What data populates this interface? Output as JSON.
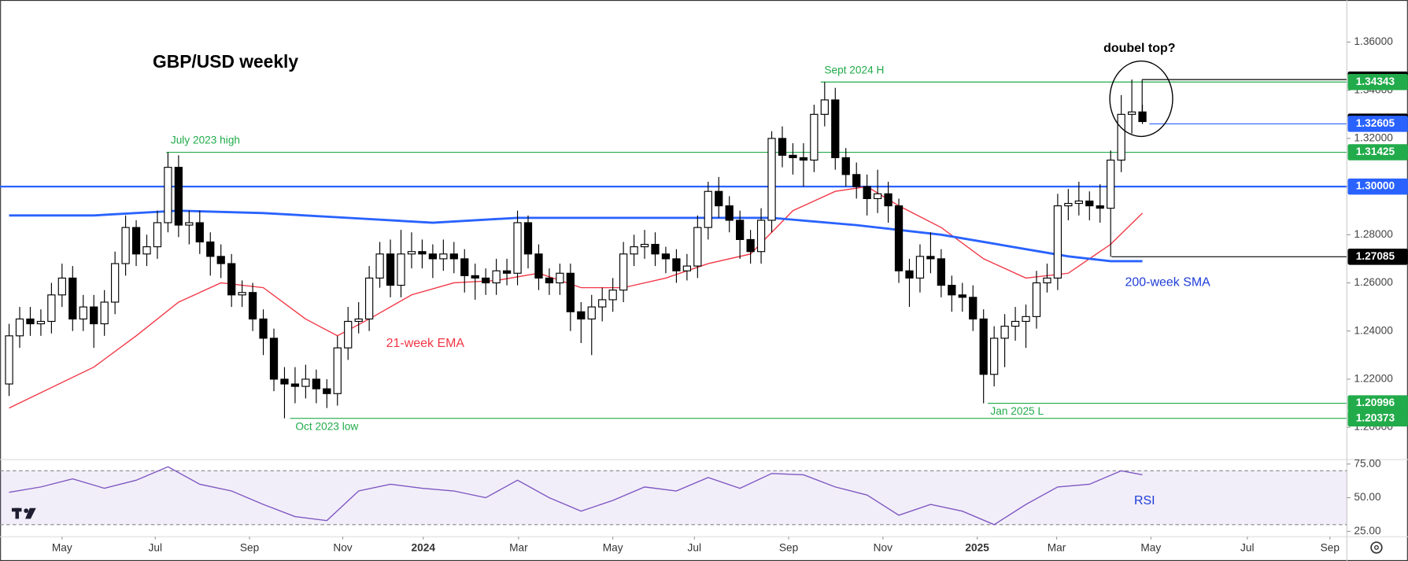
{
  "chart_data": [
    {
      "type": "candlestick",
      "title": "GBP/USD weekly",
      "xlim": [
        -0.85,
        126.3
      ],
      "xticks": [
        {
          "value": 5,
          "label": "May"
        },
        {
          "value": 13.8,
          "label": "Jul"
        },
        {
          "value": 22.7,
          "label": "Sep"
        },
        {
          "value": 31.5,
          "label": "Nov"
        },
        {
          "value": 39.1,
          "label": "2024"
        },
        {
          "value": 48.1,
          "label": "Mar"
        },
        {
          "value": 57,
          "label": "May"
        },
        {
          "value": 64.7,
          "label": "Jul"
        },
        {
          "value": 73.6,
          "label": "Sep"
        },
        {
          "value": 82.5,
          "label": "Nov"
        },
        {
          "value": 91.4,
          "label": "2025"
        },
        {
          "value": 98.9,
          "label": "Mar"
        },
        {
          "value": 107.8,
          "label": "May"
        },
        {
          "value": 116.9,
          "label": "Jul"
        },
        {
          "value": 124.7,
          "label": "Sep"
        }
      ],
      "ylim": [
        1.1866,
        1.3775
      ],
      "yticks": [
        {
          "value": 1.36,
          "label": "1.36000"
        },
        {
          "value": 1.34,
          "label": "1.34000"
        },
        {
          "value": 1.32,
          "label": "1.32000"
        },
        {
          "value": 1.3,
          "label": "1.30000"
        },
        {
          "value": 1.28,
          "label": "1.28000"
        },
        {
          "value": 1.26,
          "label": "1.26000"
        },
        {
          "value": 1.24,
          "label": "1.24000"
        },
        {
          "value": 1.22,
          "label": "1.22000"
        },
        {
          "value": 1.2,
          "label": "1.20000"
        }
      ],
      "up_color": "#ffffff",
      "down_color": "#000000",
      "open": [
        1.218,
        1.238,
        1.245,
        1.243,
        1.244,
        1.255,
        1.262,
        1.245,
        1.25,
        1.243,
        1.252,
        1.268,
        1.283,
        1.272,
        1.275,
        1.285,
        1.308,
        1.284,
        1.285,
        1.277,
        1.271,
        1.268,
        1.255,
        1.256,
        1.245,
        1.237,
        1.22,
        1.218,
        1.217,
        1.22,
        1.216,
        1.214,
        1.233,
        1.244,
        1.245,
        1.262,
        1.272,
        1.259,
        1.272,
        1.273,
        1.272,
        1.27,
        1.272,
        1.27,
        1.263,
        1.262,
        1.26,
        1.265,
        1.264,
        1.285,
        1.272,
        1.262,
        1.26,
        1.264,
        1.248,
        1.245,
        1.25,
        1.253,
        1.257,
        1.272,
        1.275,
        1.276,
        1.272,
        1.27,
        1.265,
        1.267,
        1.283,
        1.298,
        1.292,
        1.286,
        1.278,
        1.273,
        1.286,
        1.32,
        1.313,
        1.312,
        1.311,
        1.33,
        1.336,
        1.312,
        1.305,
        1.3,
        1.295,
        1.297,
        1.292,
        1.265,
        1.262,
        1.271,
        1.27,
        1.259,
        1.255,
        1.254,
        1.245,
        1.222,
        1.237,
        1.242,
        1.244,
        1.246,
        1.26,
        1.262,
        1.292,
        1.293,
        1.294,
        1.292,
        1.291,
        1.311,
        1.33,
        1.331
      ],
      "high": [
        1.243,
        1.25,
        1.25,
        1.249,
        1.26,
        1.268,
        1.267,
        1.255,
        1.255,
        1.257,
        1.273,
        1.288,
        1.286,
        1.28,
        1.29,
        1.31425,
        1.313,
        1.29,
        1.29,
        1.281,
        1.276,
        1.272,
        1.261,
        1.26,
        1.249,
        1.241,
        1.225,
        1.225,
        1.226,
        1.224,
        1.22,
        1.238,
        1.25,
        1.252,
        1.267,
        1.277,
        1.278,
        1.282,
        1.281,
        1.278,
        1.276,
        1.278,
        1.277,
        1.274,
        1.268,
        1.266,
        1.27,
        1.27,
        1.29,
        1.288,
        1.276,
        1.266,
        1.268,
        1.268,
        1.252,
        1.255,
        1.258,
        1.262,
        1.277,
        1.28,
        1.282,
        1.281,
        1.275,
        1.274,
        1.272,
        1.288,
        1.302,
        1.304,
        1.296,
        1.29,
        1.282,
        1.291,
        1.323,
        1.325,
        1.318,
        1.318,
        1.334,
        1.34343,
        1.341,
        1.316,
        1.31,
        1.305,
        1.307,
        1.302,
        1.295,
        1.27,
        1.276,
        1.281,
        1.274,
        1.263,
        1.26,
        1.259,
        1.249,
        1.242,
        1.247,
        1.25,
        1.251,
        1.265,
        1.268,
        1.297,
        1.299,
        1.302,
        1.298,
        1.301,
        1.315,
        1.338,
        1.34445,
        1.334
      ],
      "low": [
        1.213,
        1.233,
        1.238,
        1.238,
        1.239,
        1.25,
        1.24,
        1.24,
        1.233,
        1.238,
        1.247,
        1.263,
        1.267,
        1.267,
        1.27,
        1.281,
        1.279,
        1.276,
        1.272,
        1.263,
        1.262,
        1.25,
        1.25,
        1.24,
        1.23,
        1.215,
        1.20373,
        1.21,
        1.212,
        1.21,
        1.208,
        1.209,
        1.228,
        1.239,
        1.24,
        1.258,
        1.254,
        1.254,
        1.266,
        1.266,
        1.262,
        1.265,
        1.264,
        1.256,
        1.253,
        1.255,
        1.255,
        1.259,
        1.259,
        1.266,
        1.257,
        1.255,
        1.255,
        1.24,
        1.235,
        1.23,
        1.244,
        1.248,
        1.252,
        1.267,
        1.27,
        1.267,
        1.264,
        1.26,
        1.261,
        1.262,
        1.278,
        1.287,
        1.281,
        1.27,
        1.268,
        1.268,
        1.281,
        1.308,
        1.305,
        1.3,
        1.306,
        1.325,
        1.307,
        1.3,
        1.295,
        1.288,
        1.289,
        1.285,
        1.26,
        1.25,
        1.256,
        1.264,
        1.254,
        1.248,
        1.248,
        1.24,
        1.20996,
        1.217,
        1.225,
        1.236,
        1.233,
        1.241,
        1.256,
        1.257,
        1.286,
        1.288,
        1.286,
        1.285,
        1.27085,
        1.306,
        1.322,
        1.326
      ],
      "close": [
        1.238,
        1.245,
        1.243,
        1.244,
        1.255,
        1.262,
        1.245,
        1.25,
        1.243,
        1.252,
        1.268,
        1.283,
        1.272,
        1.275,
        1.285,
        1.308,
        1.284,
        1.285,
        1.277,
        1.271,
        1.268,
        1.255,
        1.256,
        1.245,
        1.237,
        1.22,
        1.218,
        1.217,
        1.22,
        1.216,
        1.214,
        1.233,
        1.244,
        1.245,
        1.262,
        1.272,
        1.259,
        1.272,
        1.273,
        1.272,
        1.27,
        1.272,
        1.27,
        1.263,
        1.262,
        1.26,
        1.265,
        1.264,
        1.285,
        1.272,
        1.262,
        1.26,
        1.264,
        1.248,
        1.245,
        1.25,
        1.253,
        1.257,
        1.272,
        1.275,
        1.276,
        1.272,
        1.27,
        1.265,
        1.267,
        1.283,
        1.298,
        1.292,
        1.286,
        1.278,
        1.273,
        1.286,
        1.32,
        1.313,
        1.312,
        1.311,
        1.33,
        1.336,
        1.312,
        1.305,
        1.3,
        1.295,
        1.297,
        1.292,
        1.265,
        1.262,
        1.271,
        1.27,
        1.259,
        1.255,
        1.254,
        1.245,
        1.222,
        1.237,
        1.242,
        1.244,
        1.246,
        1.26,
        1.262,
        1.292,
        1.293,
        1.294,
        1.292,
        1.291,
        1.311,
        1.33,
        1.331,
        1.327
      ],
      "series": [
        {
          "color": "#f23645",
          "x": [
            0,
            8,
            12,
            16,
            20,
            24,
            28,
            31,
            34,
            38,
            42,
            46,
            50,
            54,
            58,
            62,
            66,
            70,
            74,
            78,
            81,
            84,
            88,
            92,
            96,
            100,
            104,
            107
          ],
          "values": [
            1.208,
            1.225,
            1.238,
            1.252,
            1.26,
            1.258,
            1.245,
            1.238,
            1.245,
            1.255,
            1.26,
            1.261,
            1.264,
            1.258,
            1.258,
            1.262,
            1.268,
            1.272,
            1.29,
            1.298,
            1.3,
            1.292,
            1.283,
            1.27,
            1.262,
            1.264,
            1.276,
            1.289
          ]
        },
        {
          "color": "#2962ff",
          "x": [
            0,
            8,
            16,
            24,
            32,
            40,
            48,
            56,
            64,
            72,
            80,
            88,
            92,
            96,
            100,
            104,
            107
          ],
          "values": [
            1.288,
            1.288,
            1.29,
            1.289,
            1.287,
            1.285,
            1.287,
            1.287,
            1.287,
            1.287,
            1.284,
            1.28,
            1.277,
            1.274,
            1.271,
            1.269,
            1.269
          ]
        }
      ],
      "levels": [
        {
          "price": 1.34445,
          "color": "#000000"
        },
        {
          "price": 1.34343,
          "color": "#22ab4a"
        },
        {
          "price": 1.32696,
          "color": "#000000"
        },
        {
          "price": 1.32605,
          "color": "#2962ff"
        },
        {
          "price": 1.31425,
          "color": "#22ab4a"
        },
        {
          "price": {
            "value": 1.3,
            "label": "1.30000"
          },
          "color": "#2962ff"
        },
        {
          "price": 1.27085,
          "color": "#000000"
        },
        {
          "price": 1.20996,
          "color": "#22ab4a"
        },
        {
          "price": 1.20373,
          "color": "#22ab4a"
        }
      ],
      "annotations": [
        {
          "text": "July 2023 high",
          "color": "#22ab4a"
        },
        {
          "text": "Sept 2024 H",
          "color": "#22ab4a"
        },
        {
          "text": "Oct 2023 low",
          "color": "#22ab4a"
        },
        {
          "text": "Jan 2025 L",
          "color": "#22ab4a"
        },
        {
          "text": "doubel top?",
          "color": "#000000"
        },
        {
          "text": "21-week EMA",
          "color": "#f23645"
        },
        {
          "text": "200-week SMA",
          "color": "#1e3cd8"
        }
      ]
    },
    {
      "type": "line",
      "title": "RSI",
      "color": "#7e57c2",
      "title_color": "#1e3cd8",
      "ylim": [
        21,
        78.3
      ],
      "band": [
        30,
        70
      ],
      "yticks": [
        {
          "value": 75,
          "label": "75.00"
        },
        {
          "value": 50,
          "label": "50.00"
        },
        {
          "value": 25,
          "label": "25.00"
        }
      ],
      "x": [
        0,
        3,
        6,
        9,
        12,
        15,
        18,
        21,
        24,
        27,
        30,
        33,
        36,
        39,
        42,
        45,
        48,
        51,
        54,
        57,
        60,
        63,
        66,
        69,
        72,
        75,
        78,
        81,
        84,
        87,
        90,
        93,
        96,
        99,
        102,
        105,
        107
      ],
      "values": [
        54,
        58,
        64,
        57,
        63,
        73,
        60,
        55,
        45,
        36,
        33,
        55,
        60,
        57,
        55,
        50,
        63,
        50,
        40,
        48,
        58,
        55,
        65,
        57,
        68,
        67,
        58,
        52,
        37,
        45,
        40,
        30,
        45,
        58,
        60,
        70,
        67
      ]
    }
  ]
}
